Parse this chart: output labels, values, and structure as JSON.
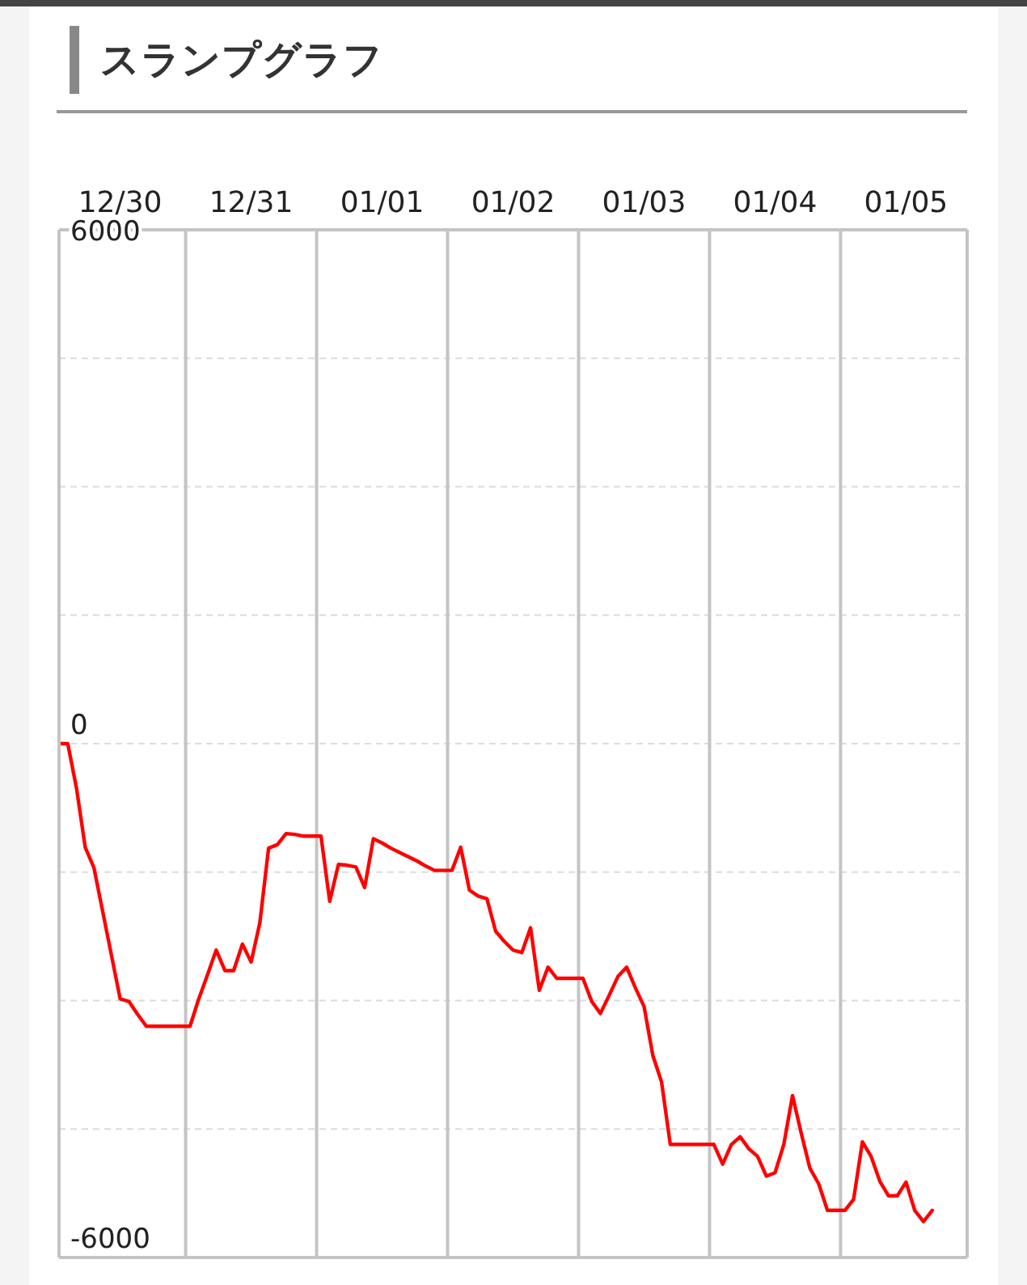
{
  "chart_data": {
    "type": "line",
    "title": "スランプグラフ",
    "categories": [
      null,
      null,
      null,
      null,
      null,
      null,
      null,
      "12/30",
      null,
      null,
      null,
      null,
      null,
      null,
      null,
      null,
      null,
      null,
      null,
      null,
      null,
      null,
      "12/31",
      null,
      null,
      null,
      null,
      null,
      null,
      null,
      null,
      null,
      null,
      null,
      null,
      null,
      null,
      "01/01",
      null,
      null,
      null,
      null,
      null,
      null,
      null,
      null,
      null,
      null,
      null,
      null,
      null,
      null,
      "01/02",
      null,
      null,
      null,
      null,
      null,
      null,
      null,
      null,
      null,
      null,
      null,
      null,
      null,
      null,
      "01/03",
      null,
      null,
      null,
      null,
      null,
      null,
      null,
      null,
      null,
      null,
      null,
      null,
      null,
      null,
      "01/04",
      null,
      null,
      null,
      null,
      null,
      null,
      null,
      null,
      null,
      null,
      null,
      null,
      null,
      null,
      "01/05",
      null,
      null,
      null,
      null,
      null,
      null,
      null
    ],
    "series": [
      {
        "color": "#ff0000",
        "values": [
          0,
          0,
          -520,
          -1210,
          -1450,
          -1960,
          -2470,
          -2980,
          -3010,
          -3160,
          -3300,
          -3300,
          -3300,
          -3300,
          -3300,
          -3300,
          -2980,
          -2700,
          -2410,
          -2650,
          -2650,
          -2340,
          -2550,
          -2090,
          -1220,
          -1180,
          -1050,
          -1060,
          -1080,
          -1080,
          -1080,
          -1840,
          -1410,
          -1420,
          -1440,
          -1680,
          -1110,
          -1160,
          -1220,
          -1270,
          -1320,
          -1370,
          -1430,
          -1480,
          -1480,
          -1480,
          -1210,
          -1710,
          -1780,
          -1810,
          -2190,
          -2310,
          -2410,
          -2440,
          -2150,
          -2880,
          -2610,
          -2740,
          -2740,
          -2740,
          -2740,
          -3010,
          -3150,
          -2940,
          -2720,
          -2610,
          -2850,
          -3070,
          -3640,
          -3950,
          -4680,
          -4680,
          -4680,
          -4680,
          -4680,
          -4680,
          -4910,
          -4680,
          -4590,
          -4730,
          -4820,
          -5050,
          -5010,
          -4680,
          -4110,
          -4550,
          -4960,
          -5140,
          -5450,
          -5450,
          -5450,
          -5320,
          -4650,
          -4820,
          -5110,
          -5280,
          -5280,
          -5120,
          -5450,
          -5580,
          -5450,
          null,
          null,
          null,
          null
        ]
      }
    ],
    "ylim": [
      -6000,
      6000
    ],
    "yticks": [
      -6000,
      {
        "value": -4500,
        "label": null
      },
      {
        "value": -3000,
        "label": null
      },
      {
        "value": -1500,
        "label": null
      },
      0,
      {
        "value": 1500,
        "label": null
      },
      {
        "value": 3000,
        "label": null
      },
      {
        "value": 4500,
        "label": null
      },
      6000
    ],
    "grid": true,
    "marker": "none",
    "line_style": "solid"
  }
}
